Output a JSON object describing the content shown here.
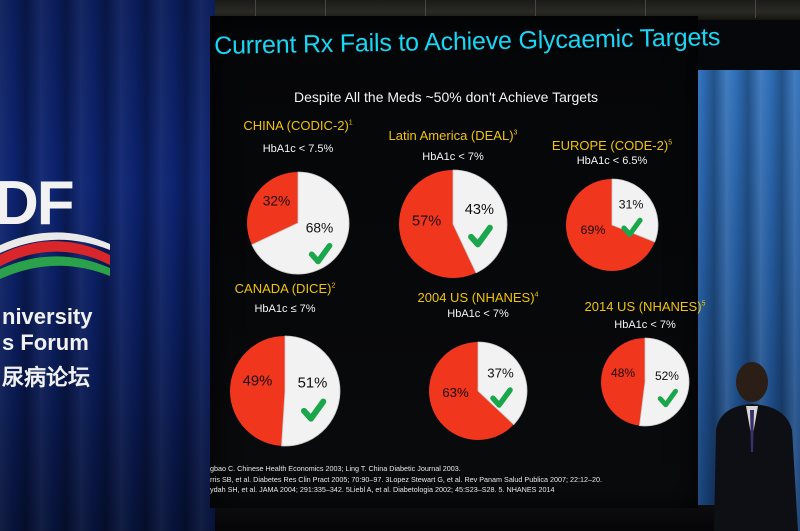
{
  "slide": {
    "title": "Current Rx Fails to Achieve Glycaemic Targets",
    "subtitle": "Despite All the Meds ~50% don't Achieve Targets",
    "references": [
      "gbao C. Chinese Health Economics 2003; Ling T. China Diabetic Journal 2003.",
      "rris SB, et al. Diabetes Res Clin Pract 2005; 70:90–97. 3Lopez Stewart G, et al. Rev Panam Salud Publica 2007; 22:12–20.",
      "ydah SH, et al. JAMA 2004; 291:335–342. 5Liebl A, et al. Diabetologia 2002; 45:S23–S28. 5. NHANES  2014"
    ]
  },
  "logo": {
    "letters": "DF",
    "line1": "niversity",
    "line2": "s Forum",
    "line3": "尿病论坛"
  },
  "colors": {
    "title": "#18d6f5",
    "region_label": "#f2c400",
    "not_achieved": "#f0361c",
    "achieved": "#f2f2f2",
    "check": "#1aa64a"
  },
  "icons": {
    "check": "check-icon"
  },
  "panels": [
    {
      "id": "china",
      "region": "CHINA (CODIC-2)",
      "sup": "1",
      "target": "HbA1c < 7.5%",
      "achieved_pct": 68,
      "not_pct": 32,
      "achieved_label": "68%",
      "not_label": "32%"
    },
    {
      "id": "latin-america",
      "region": "Latin America (DEAL)",
      "sup": "3",
      "target": "HbA1c < 7%",
      "achieved_pct": 43,
      "not_pct": 57,
      "achieved_label": "43%",
      "not_label": "57%"
    },
    {
      "id": "europe",
      "region": "EUROPE (CODE-2)",
      "sup": "5",
      "target": "HbA1c < 6.5%",
      "achieved_pct": 31,
      "not_pct": 69,
      "achieved_label": "31%",
      "not_label": "69%"
    },
    {
      "id": "canada",
      "region": "CANADA (DICE)",
      "sup": "2",
      "target": "HbA1c ≤ 7%",
      "achieved_pct": 51,
      "not_pct": 49,
      "achieved_label": "51%",
      "not_label": "49%"
    },
    {
      "id": "us-2004",
      "region": "2004 US (NHANES)",
      "sup": "4",
      "target": "HbA1c < 7%",
      "achieved_pct": 37,
      "not_pct": 63,
      "achieved_label": "37%",
      "not_label": "63%"
    },
    {
      "id": "us-2014",
      "region": "2014 US (NHANES)",
      "sup": "5",
      "target": "HbA1c < 7%",
      "achieved_pct": 52,
      "not_pct": 48,
      "achieved_label": "52%",
      "not_label": "48%"
    }
  ]
}
